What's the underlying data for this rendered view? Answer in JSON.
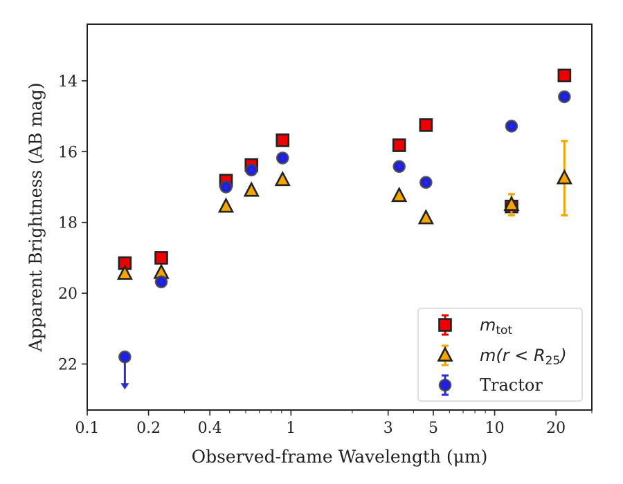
{
  "chart_data": {
    "type": "scatter",
    "xscale": "log",
    "yinverted": true,
    "xlim": [
      0.1,
      30
    ],
    "ylim": [
      23.3,
      12.4
    ],
    "xlabel": "Observed-frame Wavelength (μm)",
    "ylabel": "Apparent Brightness (AB mag)",
    "x_ticks": [
      {
        "value": 0.1,
        "label": "0.1"
      },
      {
        "value": 0.2,
        "label": "0.2"
      },
      {
        "value": 0.4,
        "label": "0.4"
      },
      {
        "value": 1,
        "label": "1"
      },
      {
        "value": 3,
        "label": "3"
      },
      {
        "value": 5,
        "label": "5"
      },
      {
        "value": 10,
        "label": "10"
      },
      {
        "value": 20,
        "label": "20"
      }
    ],
    "y_ticks": [
      {
        "value": 14,
        "label": "14"
      },
      {
        "value": 16,
        "label": "16"
      },
      {
        "value": 18,
        "label": "18"
      },
      {
        "value": 20,
        "label": "20"
      },
      {
        "value": 22,
        "label": "22"
      }
    ],
    "grid": false,
    "legend_position": "bottom-right",
    "series": [
      {
        "key": "m_tot",
        "legend_parts": [
          "m",
          "tot",
          ""
        ],
        "marker": "square",
        "fill": "#ee0000",
        "edge": "#222222",
        "errcolor": "#ee0000",
        "points": [
          {
            "x": 0.153,
            "y": 19.15,
            "err": 0.08
          },
          {
            "x": 0.231,
            "y": 19.0,
            "err": 0.08
          },
          {
            "x": 0.48,
            "y": 16.82,
            "err": 0.05
          },
          {
            "x": 0.64,
            "y": 16.38,
            "err": 0.05
          },
          {
            "x": 0.91,
            "y": 15.68,
            "err": 0.05
          },
          {
            "x": 3.4,
            "y": 15.82,
            "err": 0.05
          },
          {
            "x": 4.6,
            "y": 15.25,
            "err": 0.05
          },
          {
            "x": 12.1,
            "y": 17.55,
            "err": 0.05
          },
          {
            "x": 22.0,
            "y": 13.85,
            "err": 0.05
          }
        ]
      },
      {
        "key": "m_r25",
        "legend_parts": [
          "m",
          "",
          "(r < R"
        ],
        "legend_sub2": "25",
        "legend_tail": ")",
        "marker": "triangle",
        "fill": "#f5a500",
        "edge": "#222222",
        "errcolor": "#f5a500",
        "points": [
          {
            "x": 0.153,
            "y": 19.45,
            "err": 0.05
          },
          {
            "x": 0.231,
            "y": 19.42,
            "err": 0.05
          },
          {
            "x": 0.48,
            "y": 17.55,
            "err": 0.05
          },
          {
            "x": 0.64,
            "y": 17.1,
            "err": 0.05
          },
          {
            "x": 0.91,
            "y": 16.8,
            "err": 0.05
          },
          {
            "x": 3.4,
            "y": 17.25,
            "err": 0.05
          },
          {
            "x": 4.6,
            "y": 17.88,
            "err": 0.05
          },
          {
            "x": 12.1,
            "y": 17.5,
            "err": 0.3
          },
          {
            "x": 22.0,
            "y": 16.75,
            "err": 1.05
          }
        ]
      },
      {
        "key": "tractor",
        "legend_parts": [
          "",
          "",
          ""
        ],
        "legend_label": "Tractor",
        "marker": "circle",
        "fill": "#1f1fe0",
        "edge": "#444444",
        "errcolor": "#2a2ad8",
        "points": [
          {
            "x": 0.153,
            "y": 21.8,
            "err": 0.0,
            "upper_limit": true
          },
          {
            "x": 0.231,
            "y": 19.68,
            "err": 0.05
          },
          {
            "x": 0.48,
            "y": 17.0,
            "err": 0.05
          },
          {
            "x": 0.64,
            "y": 16.52,
            "err": 0.05
          },
          {
            "x": 0.91,
            "y": 16.18,
            "err": 0.05
          },
          {
            "x": 3.4,
            "y": 16.42,
            "err": 0.05
          },
          {
            "x": 4.6,
            "y": 16.87,
            "err": 0.05
          },
          {
            "x": 12.1,
            "y": 15.28,
            "err": 0.05
          },
          {
            "x": 22.0,
            "y": 14.45,
            "err": 0.05
          }
        ]
      }
    ]
  }
}
